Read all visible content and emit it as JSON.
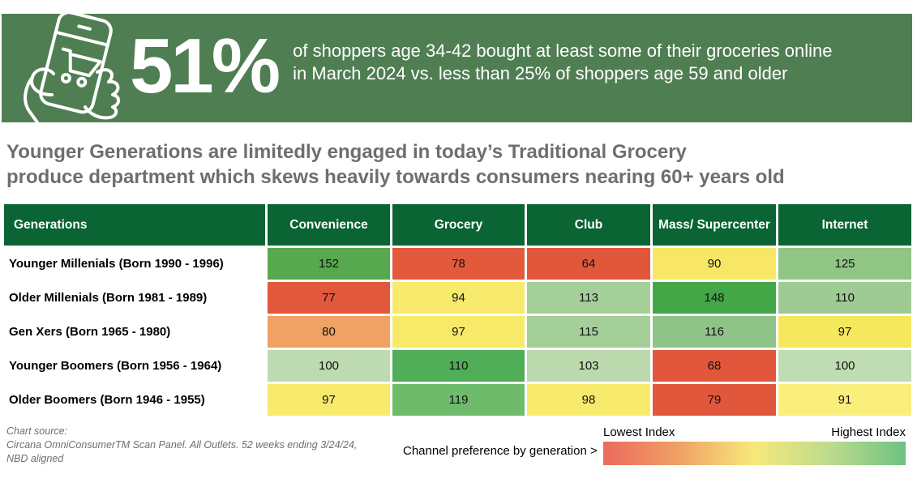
{
  "banner": {
    "bg_color": "#4F7E52",
    "icon": "hand-holding-phone-shopping-cart-icon",
    "stat": "51%",
    "description_line1": "of shoppers age 34-42 bought at least some of their groceries online",
    "description_line2": "in March 2024 vs. less than 25% of shoppers age 59 and older"
  },
  "headline": {
    "color": "#6D6E71",
    "line1": "Younger Generations are limitedly engaged in today’s Traditional Grocery",
    "line2": "produce department which skews heavily towards consumers nearing 60+ years old"
  },
  "chart_data": {
    "type": "heatmap",
    "title": "Younger Generations are limitedly engaged in today’s Traditional Grocery produce department which skews heavily towards consumers nearing 60+ years old",
    "header_bg": "#0A6433",
    "row_header": "Generations",
    "columns": [
      "Convenience",
      "Grocery",
      "Club",
      "Mass/ Supercenter",
      "Internet"
    ],
    "rows": [
      {
        "label": "Younger Millenials (Born 1990 - 1996)",
        "values": [
          152,
          78,
          64,
          90,
          125
        ],
        "colors": [
          "#57A84E",
          "#E2593C",
          "#E1573A",
          "#F7E765",
          "#90C585"
        ]
      },
      {
        "label": "Older Millenials (Born 1981 - 1989)",
        "values": [
          77,
          94,
          113,
          148,
          110
        ],
        "colors": [
          "#E1583C",
          "#F7EA6C",
          "#A5CF99",
          "#43A647",
          "#9DCB93"
        ]
      },
      {
        "label": "Gen Xers (Born 1965 - 1980)",
        "values": [
          80,
          97,
          115,
          116,
          97
        ],
        "colors": [
          "#EFA263",
          "#F8EA68",
          "#A5CF99",
          "#8FC489",
          "#F6E85D"
        ]
      },
      {
        "label": "Younger Boomers (Born 1956 - 1964)",
        "values": [
          100,
          110,
          103,
          68,
          100
        ],
        "colors": [
          "#BDDAB0",
          "#4FAE57",
          "#BBD9AD",
          "#E2573B",
          "#BFDCB2"
        ]
      },
      {
        "label": "Older Boomers (Born 1946 - 1955)",
        "values": [
          97,
          119,
          98,
          79,
          91
        ],
        "colors": [
          "#F8EA6B",
          "#6FBB6C",
          "#F8EA6B",
          "#E0573C",
          "#FAEF7C"
        ]
      }
    ],
    "legend": {
      "low_label": "Lowest Index",
      "high_label": "Highest Index",
      "note": "Channel preference by generation >",
      "gradient": [
        "#EC6A5E",
        "#F6E97B",
        "#6DC283"
      ],
      "position": "bottom-right"
    }
  },
  "footer": {
    "source_line1": "Chart source:",
    "source_line2": "Circana OmniConsumerTM Scan Panel. All Outlets. 52 weeks ending 3/24/24,",
    "source_line3": "NBD aligned"
  }
}
